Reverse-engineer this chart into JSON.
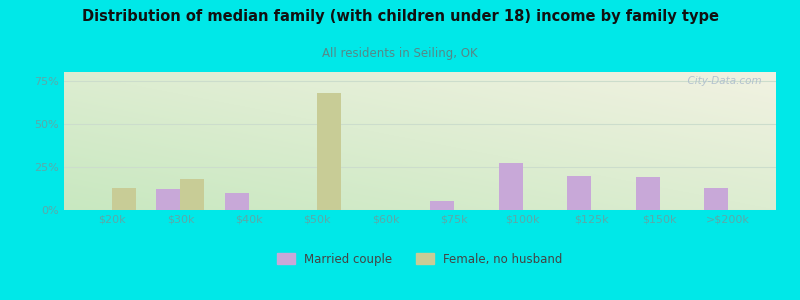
{
  "title": "Distribution of median family (with children under 18) income by family type",
  "subtitle": "All residents in Seiling, OK",
  "categories": [
    "$20k",
    "$30k",
    "$40k",
    "$50k",
    "$60k",
    "$75k",
    "$100k",
    "$125k",
    "$150k",
    ">$200k"
  ],
  "married_couple": [
    0,
    12,
    10,
    0,
    0,
    5,
    27,
    20,
    19,
    13
  ],
  "female_no_husband": [
    13,
    18,
    0,
    68,
    0,
    0,
    0,
    0,
    0,
    0
  ],
  "married_color": "#c8a8d8",
  "female_color": "#c8cc96",
  "bg_outer": "#00e8e8",
  "tick_label_color": "#5aaaaa",
  "title_color": "#111111",
  "subtitle_color": "#558888",
  "yticks": [
    0,
    25,
    50,
    75
  ],
  "ylim": [
    0,
    80
  ],
  "bar_width": 0.35,
  "watermark": "  City-Data.com",
  "grid_color": "#ccddcc",
  "plot_bg_topleft": "#c8e8c0",
  "plot_bg_bottomright": "#f0f0e0"
}
